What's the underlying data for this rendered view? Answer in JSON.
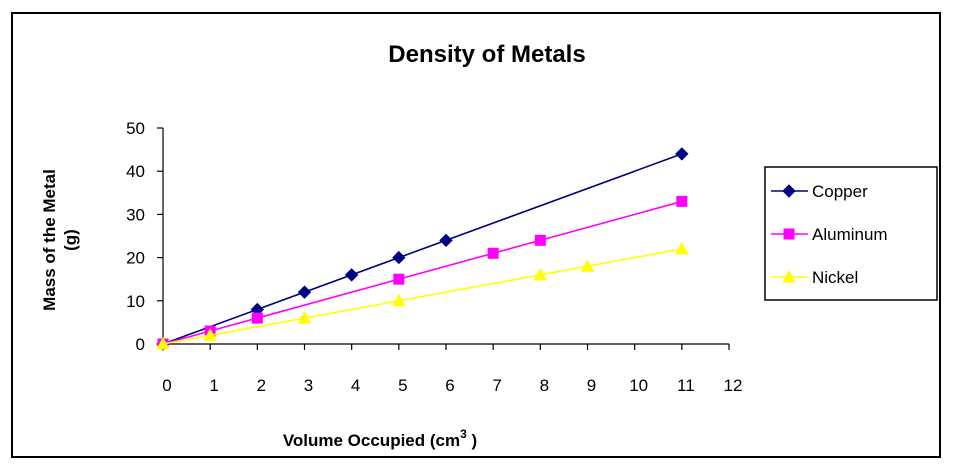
{
  "chart_data": {
    "type": "line",
    "title": "Density of Metals",
    "xlabel": "Volume  Occupied (cm",
    "xlabel_sup": "3",
    "xlabel_tail": " )",
    "ylabel_line1": "Mass of the Metal",
    "ylabel_line2": "(g)",
    "xlim": [
      0,
      12
    ],
    "ylim": [
      0,
      50
    ],
    "x_ticks": [
      0,
      1,
      2,
      3,
      4,
      5,
      6,
      7,
      8,
      9,
      10,
      11,
      12
    ],
    "y_ticks": [
      0,
      10,
      20,
      30,
      40,
      50
    ],
    "grid": false,
    "legend_position": "right",
    "series": [
      {
        "name": "Copper",
        "color": "#000080",
        "marker": "diamond",
        "points": [
          [
            0,
            0
          ],
          [
            2,
            8
          ],
          [
            3,
            12
          ],
          [
            4,
            16
          ],
          [
            5,
            20
          ],
          [
            6,
            24
          ],
          [
            11,
            44
          ]
        ],
        "trend": [
          [
            0,
            0
          ],
          [
            11,
            44
          ]
        ]
      },
      {
        "name": "Aluminum",
        "color": "#ff00ff",
        "marker": "square",
        "points": [
          [
            0,
            0
          ],
          [
            1,
            3
          ],
          [
            2,
            6
          ],
          [
            5,
            15
          ],
          [
            7,
            21
          ],
          [
            8,
            24
          ],
          [
            11,
            33
          ]
        ],
        "trend": [
          [
            0,
            0
          ],
          [
            11,
            33
          ]
        ]
      },
      {
        "name": "Nickel",
        "color": "#ffff00",
        "marker": "triangle",
        "points": [
          [
            0,
            0
          ],
          [
            1,
            2
          ],
          [
            3,
            6
          ],
          [
            5,
            10
          ],
          [
            8,
            16
          ],
          [
            9,
            18
          ],
          [
            11,
            22
          ]
        ],
        "trend": [
          [
            0,
            0
          ],
          [
            11,
            22
          ]
        ]
      }
    ]
  }
}
